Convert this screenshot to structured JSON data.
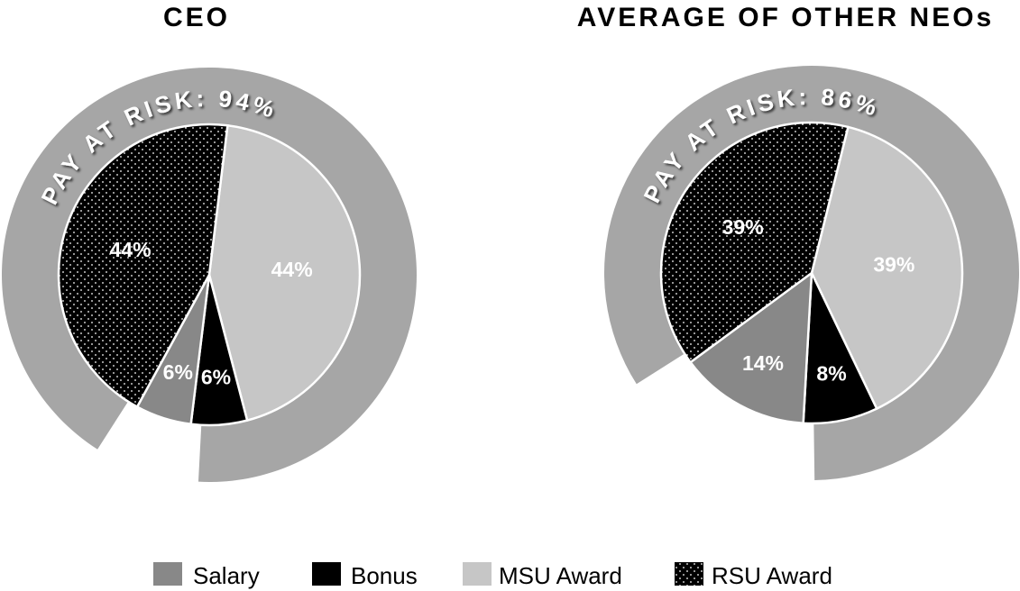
{
  "chart_data": [
    {
      "type": "pie",
      "title": "CEO",
      "ring_label": "PAY AT RISK: 94%",
      "pay_at_risk_percent": 94,
      "slices": [
        {
          "name": "MSU Award",
          "value": 44,
          "label": "44%"
        },
        {
          "name": "Bonus",
          "value": 6,
          "label": "6%"
        },
        {
          "name": "Salary",
          "value": 6,
          "label": "6%"
        },
        {
          "name": "RSU Award",
          "value": 44,
          "label": "44%"
        }
      ]
    },
    {
      "type": "pie",
      "title": "AVERAGE OF OTHER NEOs",
      "ring_label": "PAY AT RISK: 86%",
      "pay_at_risk_percent": 86,
      "slices": [
        {
          "name": "MSU Award",
          "value": 39,
          "label": "39%"
        },
        {
          "name": "Bonus",
          "value": 8,
          "label": "8%"
        },
        {
          "name": "Salary",
          "value": 14,
          "label": "14%"
        },
        {
          "name": "RSU Award",
          "value": 39,
          "label": "39%"
        }
      ]
    }
  ],
  "legend": [
    {
      "name": "Salary",
      "label": "Salary",
      "color": "#888888",
      "pattern": "solid"
    },
    {
      "name": "Bonus",
      "label": "Bonus",
      "color": "#000000",
      "pattern": "solid"
    },
    {
      "name": "MSU Award",
      "label": "MSU Award",
      "color": "#c6c6c6",
      "pattern": "solid"
    },
    {
      "name": "RSU Award",
      "label": "RSU Award",
      "color": "#000000",
      "pattern": "dots"
    }
  ],
  "colors": {
    "ring": "#a6a6a6",
    "slice_border": "#ffffff"
  }
}
